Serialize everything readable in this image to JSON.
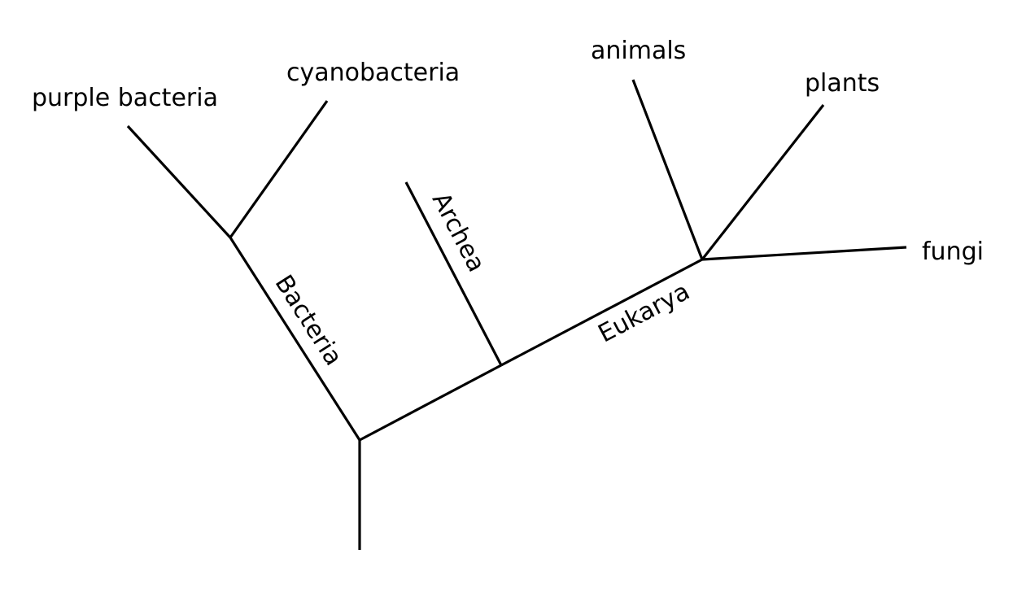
{
  "tree": {
    "tips": {
      "purple_bacteria": "purple bacteria",
      "cyanobacteria": "cyanobacteria",
      "animals": "animals",
      "plants": "plants",
      "fungi": "fungi"
    },
    "clades": {
      "bacteria": "Bacteria",
      "archea": "Archea",
      "eukarya": "Eukarya"
    },
    "line_color": "#000000",
    "background_color": "#ffffff"
  }
}
